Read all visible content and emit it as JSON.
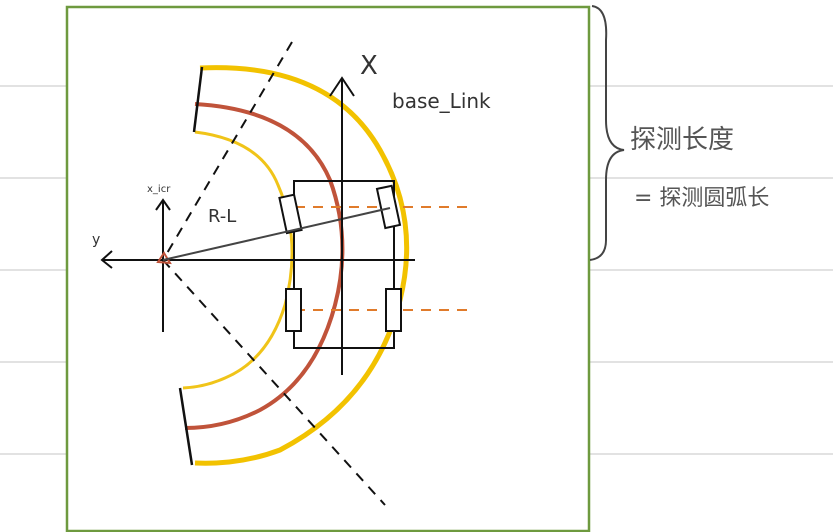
{
  "labels": {
    "base_link": "base_Link",
    "x_axis_top": "X",
    "x_icr": "x_icr",
    "y_axis": "y",
    "radius": "R-L",
    "detect_length": "探测长度",
    "detect_arc_length": "= 探测圆弧长"
  },
  "colors": {
    "frame": "#6e9a3f",
    "outer_arc": "#f2c200",
    "mid_arc": "#c0533a",
    "inner_arc": "#f0c419",
    "dashed_orange": "#e07b2b",
    "ink": "#111111",
    "ruled_line": "#bdbdbd"
  }
}
